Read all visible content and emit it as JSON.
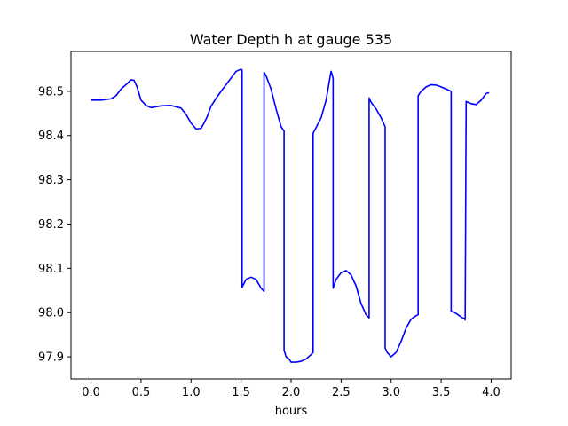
{
  "chart_data": {
    "type": "line",
    "title": "Water Depth h at gauge 535",
    "xlabel": "hours",
    "ylabel": "",
    "xlim": [
      -0.2,
      4.2
    ],
    "ylim": [
      97.85,
      98.59
    ],
    "xticks": [
      0.0,
      0.5,
      1.0,
      1.5,
      2.0,
      2.5,
      3.0,
      3.5,
      4.0
    ],
    "xtick_labels": [
      "0.0",
      "0.5",
      "1.0",
      "1.5",
      "2.0",
      "2.5",
      "3.0",
      "3.5",
      "4.0"
    ],
    "yticks": [
      97.9,
      98.0,
      98.1,
      98.2,
      98.3,
      98.4,
      98.5
    ],
    "ytick_labels": [
      "97.9",
      "98.0",
      "98.1",
      "98.2",
      "98.3",
      "98.4",
      "98.5"
    ],
    "grid": false,
    "series": [
      {
        "color": "#0000ff",
        "x": [
          0.0,
          0.1,
          0.2,
          0.25,
          0.3,
          0.35,
          0.4,
          0.43,
          0.46,
          0.5,
          0.55,
          0.6,
          0.7,
          0.8,
          0.9,
          0.95,
          1.0,
          1.05,
          1.1,
          1.13,
          1.16,
          1.2,
          1.25,
          1.3,
          1.4,
          1.45,
          1.5,
          1.51,
          1.51,
          1.55,
          1.6,
          1.65,
          1.7,
          1.73,
          1.73,
          1.75,
          1.8,
          1.85,
          1.9,
          1.93,
          1.93,
          1.95,
          1.98,
          2.0,
          2.05,
          2.1,
          2.15,
          2.2,
          2.22,
          2.22,
          2.25,
          2.3,
          2.35,
          2.38,
          2.4,
          2.42,
          2.42,
          2.45,
          2.5,
          2.55,
          2.6,
          2.65,
          2.7,
          2.75,
          2.78,
          2.78,
          2.8,
          2.85,
          2.9,
          2.94,
          2.94,
          2.96,
          3.0,
          3.05,
          3.1,
          3.15,
          3.2,
          3.25,
          3.27,
          3.27,
          3.3,
          3.35,
          3.4,
          3.45,
          3.5,
          3.55,
          3.6,
          3.6,
          3.65,
          3.7,
          3.74,
          3.74,
          3.75,
          3.8,
          3.85,
          3.9,
          3.95,
          3.98
        ],
        "y": [
          98.48,
          98.48,
          98.483,
          98.49,
          98.505,
          98.515,
          98.526,
          98.525,
          98.51,
          98.48,
          98.468,
          98.463,
          98.467,
          98.468,
          98.462,
          98.448,
          98.428,
          98.415,
          98.416,
          98.428,
          98.442,
          98.466,
          98.484,
          98.5,
          98.53,
          98.545,
          98.55,
          98.548,
          98.057,
          98.075,
          98.08,
          98.075,
          98.055,
          98.048,
          98.543,
          98.535,
          98.505,
          98.46,
          98.42,
          98.41,
          97.915,
          97.9,
          97.895,
          97.888,
          97.888,
          97.89,
          97.895,
          97.905,
          97.91,
          98.405,
          98.418,
          98.44,
          98.48,
          98.52,
          98.545,
          98.53,
          98.055,
          98.075,
          98.09,
          98.095,
          98.085,
          98.06,
          98.02,
          97.995,
          97.988,
          98.485,
          98.475,
          98.46,
          98.44,
          98.42,
          97.92,
          97.91,
          97.9,
          97.91,
          97.935,
          97.965,
          97.985,
          97.993,
          97.995,
          98.49,
          98.5,
          98.51,
          98.515,
          98.514,
          98.51,
          98.505,
          98.5,
          98.003,
          97.998,
          97.99,
          97.985,
          97.983,
          98.477,
          98.472,
          98.47,
          98.48,
          98.495,
          98.497
        ]
      }
    ]
  }
}
